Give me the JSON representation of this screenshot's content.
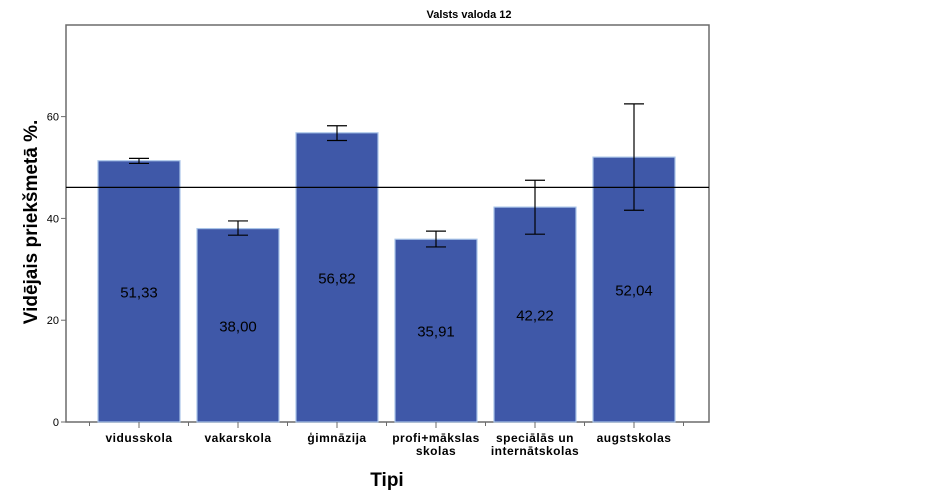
{
  "chart_data": {
    "type": "bar",
    "title": "Valsts valoda 12",
    "xlabel": "Tipi",
    "ylabel": "Vidējais priekšmetā %.",
    "categories": [
      [
        "vidusskola"
      ],
      [
        "vakarskola"
      ],
      [
        "ģimnāzija"
      ],
      [
        "profi+mākslas",
        "skolas"
      ],
      [
        "speciālās un",
        "internātskolas"
      ],
      [
        "augstskolas"
      ]
    ],
    "values": [
      51.33,
      38.0,
      56.82,
      35.91,
      42.22,
      52.04
    ],
    "value_labels": [
      "51,33",
      "38,00",
      "56,82",
      "35,91",
      "42,22",
      "52,04"
    ],
    "error_bars": [
      {
        "low": 50.8,
        "high": 51.8
      },
      {
        "low": 36.7,
        "high": 39.5
      },
      {
        "low": 55.3,
        "high": 58.2
      },
      {
        "low": 34.4,
        "high": 37.5
      },
      {
        "low": 36.9,
        "high": 47.5
      },
      {
        "low": 41.6,
        "high": 62.5
      }
    ],
    "reference_line": 46.1,
    "ylim": [
      0,
      78
    ],
    "yticks": [
      0,
      20,
      40,
      60
    ],
    "grid": false,
    "legend": "none",
    "colors": {
      "bar_fill": "#3f58a8",
      "bar_edge": "#a9c4e8",
      "axis": "#6b6b6b",
      "error_bar": "#000000",
      "reference_line": "#000000"
    }
  }
}
